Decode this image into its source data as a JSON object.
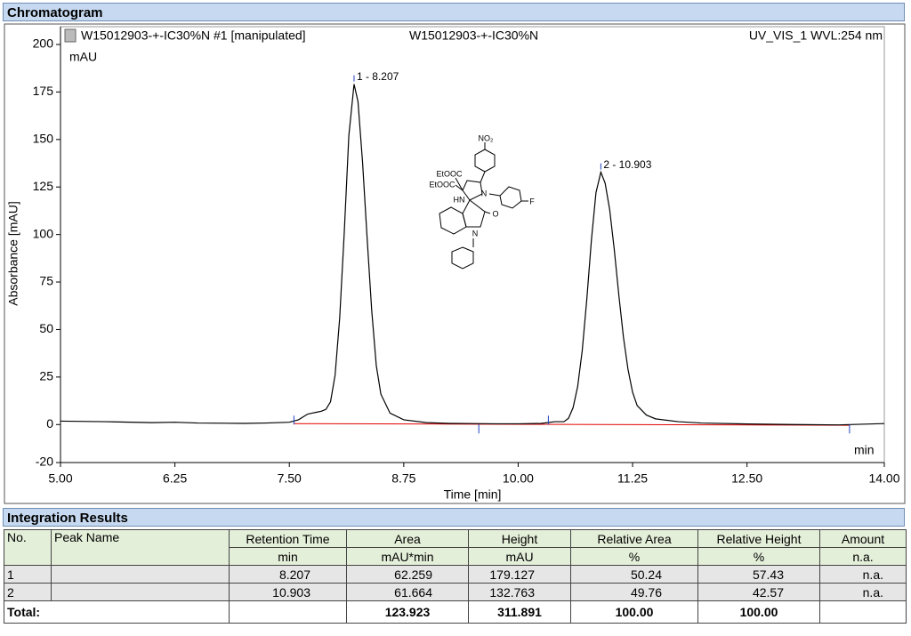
{
  "sections": {
    "chromatogram": "Chromatogram",
    "integration": "Integration Results"
  },
  "chart_data": {
    "type": "line",
    "header_left": "W15012903-+-IC30%N #1 [manipulated]",
    "header_center": "W15012903-+-IC30%N",
    "header_right": "UV_VIS_1 WVL:254 nm",
    "y_unit": "mAU",
    "x_unit": "min",
    "ylabel": "Absorbance [mAU]",
    "xlabel": "Time [min]",
    "color": "#000000",
    "x": [
      5.0,
      5.5,
      6.0,
      6.25,
      6.5,
      7.0,
      7.25,
      7.5,
      7.6,
      7.7,
      7.75,
      7.8,
      7.85,
      7.9,
      7.95,
      8.0,
      8.05,
      8.1,
      8.15,
      8.207,
      8.25,
      8.3,
      8.35,
      8.4,
      8.45,
      8.5,
      8.6,
      8.75,
      9.0,
      9.25,
      9.5,
      9.75,
      10.0,
      10.25,
      10.4,
      10.5,
      10.55,
      10.6,
      10.65,
      10.7,
      10.75,
      10.8,
      10.85,
      10.903,
      10.95,
      11.0,
      11.05,
      11.1,
      11.15,
      11.2,
      11.25,
      11.3,
      11.4,
      11.5,
      11.75,
      12.0,
      12.5,
      13.0,
      13.5,
      14.0
    ],
    "values": [
      1.8,
      1.5,
      1.0,
      1.2,
      0.8,
      0.6,
      0.8,
      1.2,
      2.5,
      5.5,
      6.0,
      6.5,
      7.0,
      8.0,
      12,
      26,
      56,
      101,
      152,
      179.1,
      170,
      138,
      98,
      60,
      31,
      16,
      6,
      2.5,
      1.0,
      0.6,
      0.5,
      0.4,
      0.4,
      0.6,
      1.5,
      1.5,
      3.3,
      8.9,
      20,
      39,
      66,
      97,
      122,
      132.8,
      127,
      113,
      92,
      68,
      46,
      29,
      17,
      10,
      5,
      3,
      1.5,
      0.8,
      0.3,
      0,
      -0.2,
      0.5
    ],
    "baseline": {
      "color": "#e00000",
      "x": [
        7.55,
        13.62
      ],
      "values": [
        0.5,
        -0.4
      ]
    },
    "integration_ticks": [
      7.55,
      9.57,
      10.33,
      13.62
    ],
    "peaks": [
      {
        "label": "1 - 8.207",
        "x": 8.207,
        "y": 179.127
      },
      {
        "label": "2 - 10.903",
        "x": 10.903,
        "y": 132.763
      }
    ],
    "xlim": [
      5,
      14
    ],
    "xticks": [
      {
        "value": 5,
        "label": "5.00"
      },
      {
        "value": 6.25,
        "label": "6.25"
      },
      {
        "value": 7.5,
        "label": "7.50"
      },
      {
        "value": 8.75,
        "label": "8.75"
      },
      {
        "value": 10,
        "label": "10.00"
      },
      {
        "value": 11.25,
        "label": "11.25"
      },
      {
        "value": 12.5,
        "label": "12.50"
      },
      {
        "value": 14,
        "label": "14.00"
      }
    ],
    "ylim": [
      -20,
      200
    ],
    "yticks": [
      -20,
      0,
      25,
      50,
      75,
      100,
      125,
      150,
      175,
      200
    ]
  },
  "structure": {
    "labels": [
      "NO₂",
      "EtOOC",
      "EtOOC",
      "HN",
      "N",
      "F",
      "O",
      "N"
    ]
  },
  "table": {
    "columns": [
      {
        "name": "No."
      },
      {
        "name": "Peak Name"
      },
      {
        "name": "Retention Time",
        "unit": "min"
      },
      {
        "name": "Area",
        "unit": "mAU*min"
      },
      {
        "name": "Height",
        "unit": "mAU"
      },
      {
        "name": "Relative Area",
        "unit": "%"
      },
      {
        "name": "Relative Height",
        "unit": "%"
      },
      {
        "name": "Amount",
        "unit": "n.a."
      }
    ],
    "rows": [
      {
        "no": "1",
        "retention_time": "8.207",
        "area": "62.259",
        "height": "179.127",
        "relative_area": "50.24",
        "relative_height": "57.43",
        "amount": "n.a."
      },
      {
        "no": "2",
        "retention_time": "10.903",
        "area": "61.664",
        "height": "132.763",
        "relative_area": "49.76",
        "relative_height": "42.57",
        "amount": "n.a."
      }
    ],
    "total": {
      "label": "Total:",
      "area": "123.923",
      "height": "311.891",
      "relative_area": "100.00",
      "relative_height": "100.00"
    }
  }
}
